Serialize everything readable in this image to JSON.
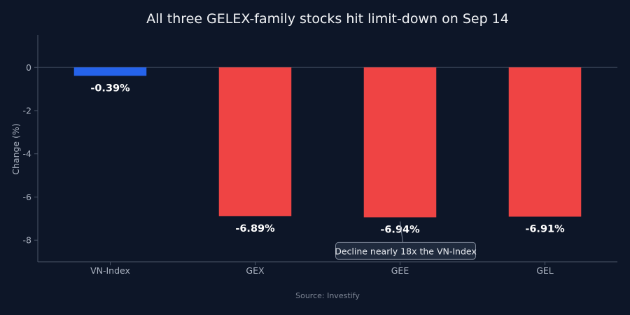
{
  "chart_data": {
    "type": "bar",
    "title": "All three GELEX-family stocks hit limit-down on Sep 14",
    "xlabel": "",
    "ylabel": "Change (%)",
    "categories": [
      "VN-Index",
      "GEX",
      "GEE",
      "GEL"
    ],
    "values": [
      -0.39,
      -6.89,
      -6.94,
      -6.91
    ],
    "data_labels": [
      "-0.39%",
      "-6.89%",
      "-6.94%",
      "-6.91%"
    ],
    "bar_colors": [
      "#2563eb",
      "#ef4444",
      "#ef4444",
      "#ef4444"
    ],
    "ylim": [
      -9,
      1.5
    ],
    "yticks": [
      0,
      -2,
      -4,
      -6,
      -8
    ],
    "grid": false,
    "annotation": {
      "text": "Decline nearly 18x the VN-Index",
      "target_category": "GEE"
    },
    "source": "Source: Investify"
  },
  "colors": {
    "background": "#0d1628",
    "axis_line": "#4a5568",
    "baseline": "#3a4558",
    "annotation_bg": "#1f2a3d",
    "annotation_border": "#7d8697"
  }
}
